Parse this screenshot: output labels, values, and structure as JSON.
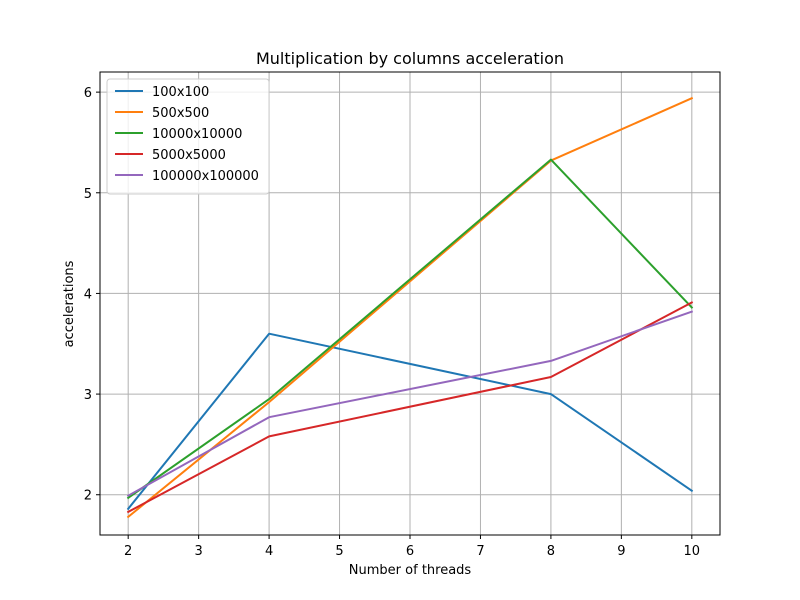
{
  "chart_data": {
    "type": "line",
    "title": "Multiplication by columns acceleration",
    "xlabel": "Number of threads",
    "ylabel": "accelerations",
    "x": [
      2,
      4,
      8,
      10
    ],
    "xlim": [
      1.6,
      10.4
    ],
    "ylim": [
      1.6,
      6.2
    ],
    "xticks": [
      2,
      3,
      4,
      5,
      6,
      7,
      8,
      9,
      10
    ],
    "yticks": [
      2,
      3,
      4,
      5,
      6
    ],
    "grid": true,
    "legend_position": "top-left",
    "series": [
      {
        "name": "100x100",
        "color": "#1f77b4",
        "values": [
          1.86,
          3.6,
          3.0,
          2.04
        ]
      },
      {
        "name": "500x500",
        "color": "#ff7f0e",
        "values": [
          1.78,
          2.92,
          5.32,
          5.94
        ]
      },
      {
        "name": "10000x10000",
        "color": "#2ca02c",
        "values": [
          1.97,
          2.95,
          5.33,
          3.86
        ]
      },
      {
        "name": "5000x5000",
        "color": "#d62728",
        "values": [
          1.83,
          2.58,
          3.17,
          3.91
        ]
      },
      {
        "name": "100000x100000",
        "color": "#9467bd",
        "values": [
          1.99,
          2.77,
          3.33,
          3.82
        ]
      }
    ]
  }
}
